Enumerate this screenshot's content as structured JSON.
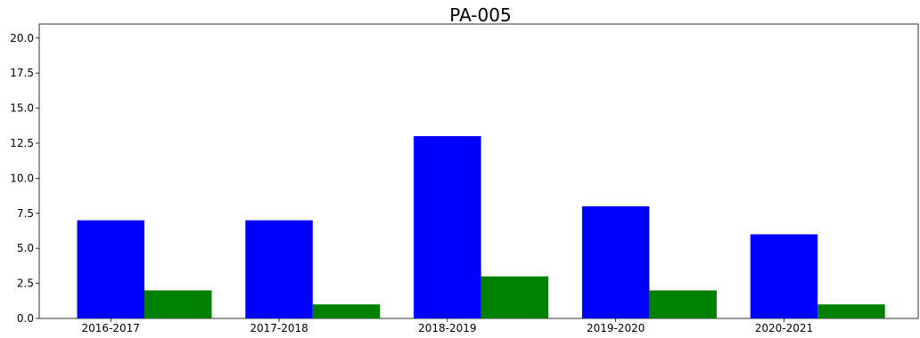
{
  "chart_data": {
    "type": "bar",
    "title": "PA-005",
    "xlabel": "",
    "ylabel": "",
    "categories": [
      "2016-2017",
      "2017-2018",
      "2018-2019",
      "2019-2020",
      "2020-2021"
    ],
    "series": [
      {
        "color": "#0000ff",
        "values": [
          7,
          7,
          13,
          8,
          6
        ]
      },
      {
        "color": "#008000",
        "values": [
          2,
          1,
          3,
          2,
          1
        ]
      }
    ],
    "ylim": [
      0,
      21
    ],
    "yticks": [
      "0.0",
      "2.5",
      "5.0",
      "7.5",
      "10.0",
      "12.5",
      "15.0",
      "17.5",
      "20.0"
    ],
    "grid": false,
    "legend": false
  }
}
